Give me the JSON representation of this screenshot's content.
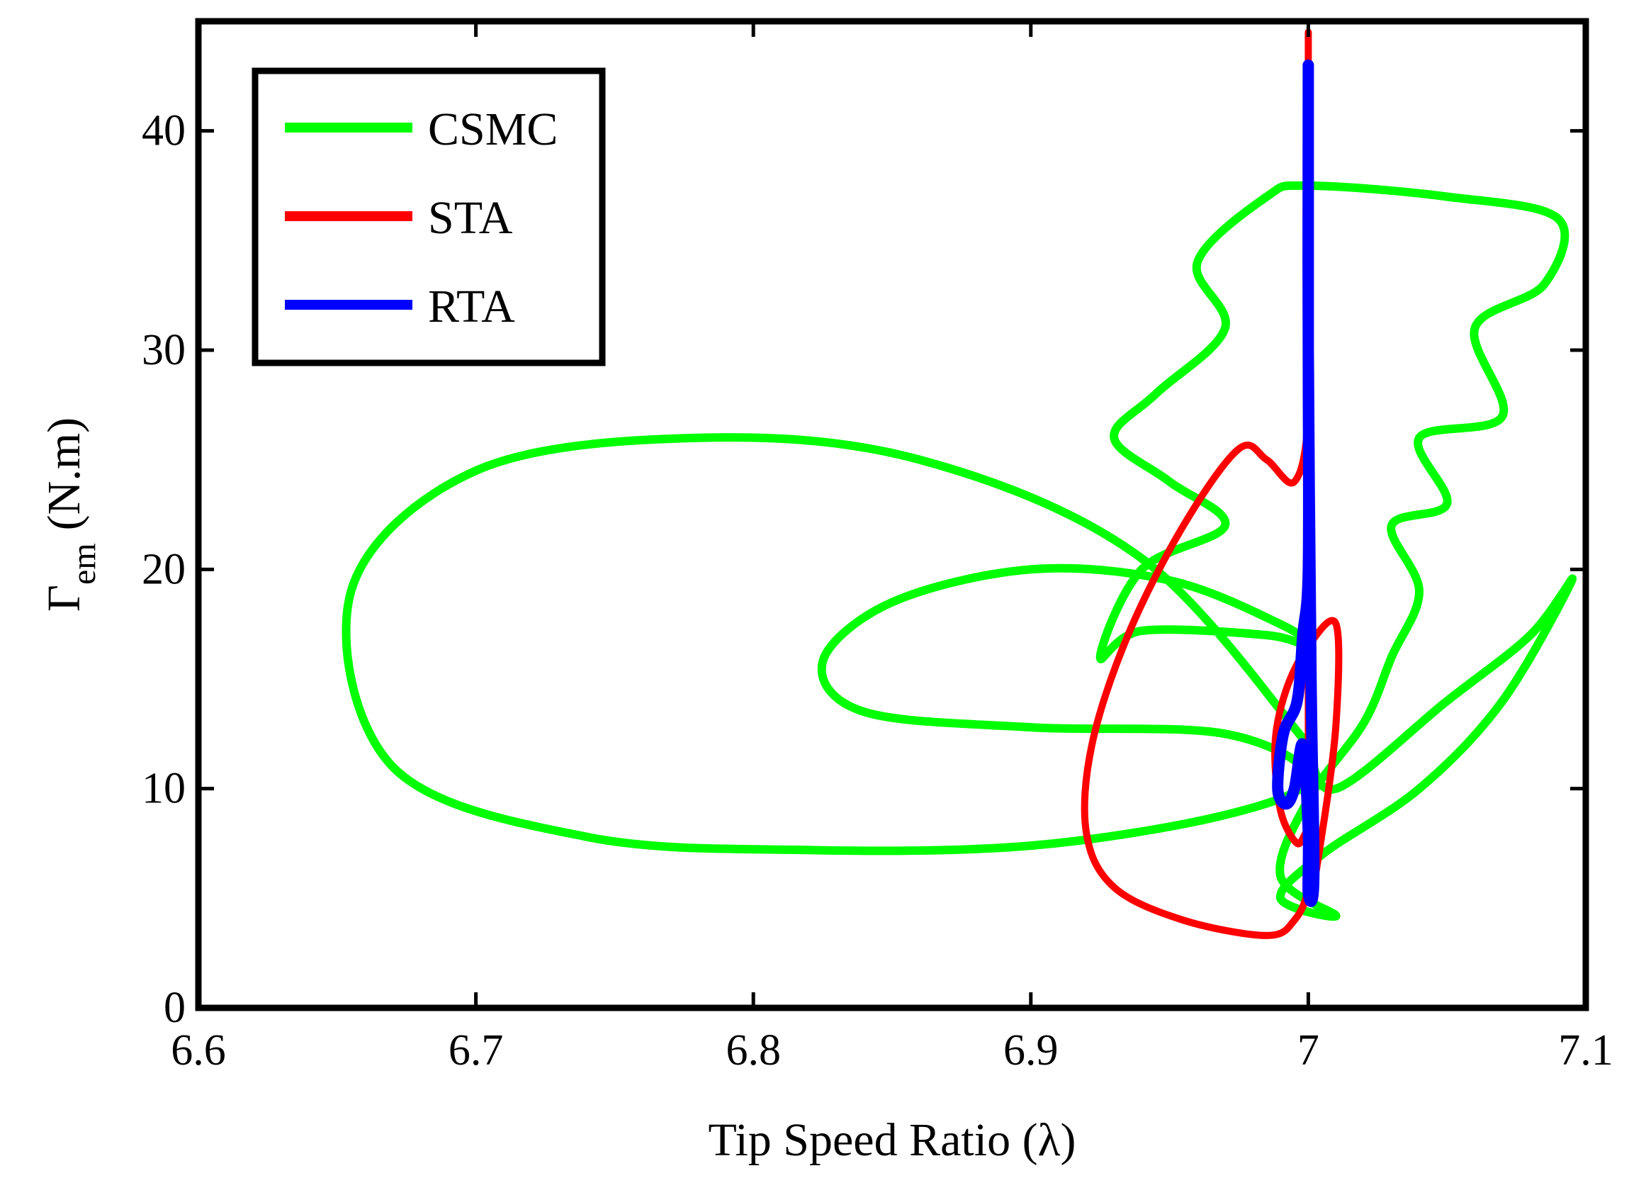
{
  "chart_data": {
    "type": "line",
    "title": "",
    "xlabel": "Tip Speed Ratio (λ)",
    "ylabel": {
      "symbol": "Γ",
      "subscript": "em",
      "unit": "(N.m)"
    },
    "xlim": [
      6.6,
      7.1
    ],
    "ylim": [
      0,
      45
    ],
    "xticks": [
      "6.6",
      "6.7",
      "6.8",
      "6.9",
      "7",
      "7.1"
    ],
    "yticks": [
      "0",
      "10",
      "20",
      "30",
      "40"
    ],
    "legend_position": "top-left",
    "series": [
      {
        "name": "CSMC",
        "color": "#00ff00",
        "x": [
          7.0,
          6.94,
          6.86,
          6.78,
          6.7,
          6.655,
          6.67,
          6.74,
          6.82,
          6.9,
          6.97,
          7.0,
          6.97,
          6.9,
          6.84,
          6.825,
          6.85,
          6.9,
          6.95,
          6.99,
          7.0,
          6.985,
          6.94,
          6.925,
          6.94,
          6.97,
          6.95,
          6.93,
          6.945,
          6.97,
          6.96,
          6.985,
          7.0,
          7.05,
          7.09,
          7.085,
          7.06,
          7.07,
          7.04,
          7.05,
          7.03,
          7.04,
          7.03,
          7.02,
          7.0,
          6.99,
          7.01,
          6.99,
          7.005,
          7.04,
          7.07,
          7.095,
          7.08,
          7.05,
          7.01,
          7.0
        ],
        "y": [
          12.0,
          20.5,
          25.0,
          26.0,
          24.5,
          19.0,
          11.0,
          7.8,
          7.2,
          7.4,
          8.8,
          10.5,
          12.5,
          12.8,
          13.5,
          15.8,
          18.5,
          20.0,
          19.5,
          17.5,
          16.5,
          17.0,
          17.2,
          16.0,
          20.0,
          22.0,
          24.0,
          26.0,
          28.0,
          31.0,
          34.0,
          37.0,
          37.5,
          37.0,
          36.0,
          33.0,
          31.0,
          27.0,
          26.0,
          23.0,
          22.0,
          19.0,
          16.0,
          13.0,
          9.5,
          6.0,
          4.2,
          5.0,
          7.0,
          10.0,
          14.0,
          19.5,
          17.0,
          14.0,
          10.0,
          12.0
        ]
      },
      {
        "name": "STA",
        "color": "#ff0000",
        "x": [
          7.0,
          7.0,
          7.0,
          6.995,
          6.985,
          6.975,
          6.955,
          6.935,
          6.922,
          6.92,
          6.93,
          6.955,
          6.985,
          6.995,
          7.0,
          7.0,
          6.996,
          6.99,
          6.988,
          6.992,
          7.0,
          7.01,
          7.01,
          7.005,
          7.0,
          7.0,
          7.0,
          7.0
        ],
        "y": [
          44.5,
          35.0,
          27.0,
          24.0,
          25.0,
          25.5,
          22.0,
          17.0,
          12.0,
          8.0,
          5.5,
          4.0,
          3.3,
          4.0,
          5.5,
          8.0,
          7.5,
          9.0,
          12.0,
          14.5,
          16.5,
          17.5,
          13.0,
          8.0,
          5.0,
          12.0,
          30.0,
          44.5
        ]
      },
      {
        "name": "RTA",
        "color": "#0000ff",
        "x": [
          7.0,
          7.0,
          7.0,
          7.0,
          6.998,
          6.996,
          6.991,
          6.989,
          6.992,
          6.995,
          6.998,
          7.0,
          7.0,
          7.002,
          7.001,
          7.0,
          7.0
        ],
        "y": [
          43.0,
          40.0,
          30.0,
          20.0,
          17.0,
          14.0,
          12.5,
          10.0,
          9.3,
          10.0,
          12.0,
          8.0,
          5.2,
          6.0,
          15.0,
          30.0,
          43.0
        ]
      }
    ]
  }
}
